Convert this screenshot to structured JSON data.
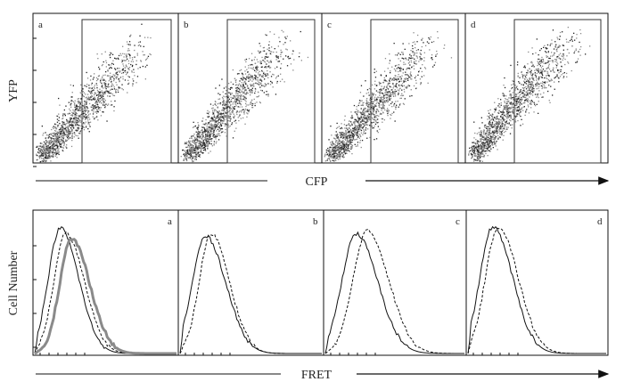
{
  "figure": {
    "top_panels": [
      "a",
      "b",
      "c",
      "d"
    ],
    "bottom_panels": [
      "a",
      "b",
      "c",
      "d"
    ],
    "top_ylabel": "YFP",
    "top_xlabel": "CFP",
    "bottom_ylabel": "Cell Number",
    "bottom_xlabel": "FRET"
  },
  "chart_data": [
    {
      "type": "scatter",
      "title": "",
      "xlabel": "CFP",
      "ylabel": "YFP",
      "panels": [
        "a",
        "b",
        "c",
        "d"
      ],
      "gate": "rectangular gate on CFP-positive cells"
    },
    {
      "type": "line",
      "title": "",
      "xlabel": "FRET",
      "ylabel": "Cell Number",
      "panels": [
        "a",
        "b",
        "c",
        "d"
      ],
      "series_styles": [
        "solid",
        "dashed",
        "thick gray"
      ]
    }
  ]
}
